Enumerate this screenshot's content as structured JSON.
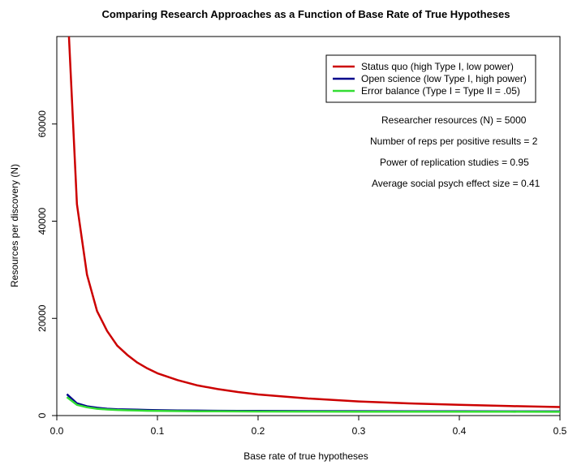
{
  "chart_data": {
    "type": "line",
    "title": "Comparing Research Approaches as a Function of Base Rate of True Hypotheses",
    "xlabel": "Base rate of true hypotheses",
    "ylabel": "Resources per discovery (N)",
    "xlim": [
      0,
      0.5
    ],
    "ylim": [
      0,
      78000
    ],
    "x_ticks": [
      0.0,
      0.1,
      0.2,
      0.3,
      0.4,
      0.5
    ],
    "x_tick_labels": [
      "0.0",
      "0.1",
      "0.2",
      "0.3",
      "0.4",
      "0.5"
    ],
    "y_ticks": [
      0,
      20000,
      40000,
      60000
    ],
    "y_tick_labels": [
      "0",
      "20000",
      "40000",
      "60000"
    ],
    "grid": false,
    "legend_position": "top-right",
    "series": [
      {
        "name": "Status quo (high Type I, low power)",
        "color": "#cc0000",
        "x": [
          0.01,
          0.02,
          0.03,
          0.04,
          0.05,
          0.06,
          0.07,
          0.08,
          0.09,
          0.1,
          0.12,
          0.14,
          0.16,
          0.18,
          0.2,
          0.25,
          0.3,
          0.35,
          0.4,
          0.45,
          0.5
        ],
        "y": [
          87000,
          43500,
          29000,
          21500,
          17400,
          14400,
          12500,
          10900,
          9700,
          8700,
          7300,
          6200,
          5450,
          4850,
          4350,
          3500,
          2900,
          2500,
          2200,
          1950,
          1750
        ]
      },
      {
        "name": "Open science (low Type I, high power)",
        "color": "#00008b",
        "x": [
          0.01,
          0.02,
          0.03,
          0.04,
          0.05,
          0.06,
          0.07,
          0.08,
          0.09,
          0.1,
          0.12,
          0.14,
          0.16,
          0.18,
          0.2,
          0.25,
          0.3,
          0.35,
          0.4,
          0.45,
          0.5
        ],
        "y": [
          4400,
          2500,
          1900,
          1600,
          1400,
          1300,
          1250,
          1200,
          1150,
          1100,
          1060,
          1020,
          990,
          970,
          950,
          920,
          900,
          885,
          870,
          860,
          850
        ]
      },
      {
        "name": "Error balance (Type I = Type II = .05)",
        "color": "#33dd33",
        "x": [
          0.01,
          0.02,
          0.03,
          0.04,
          0.05,
          0.06,
          0.07,
          0.08,
          0.09,
          0.1,
          0.12,
          0.14,
          0.16,
          0.18,
          0.2,
          0.25,
          0.3,
          0.35,
          0.4,
          0.45,
          0.5
        ],
        "y": [
          3800,
          2200,
          1700,
          1400,
          1250,
          1150,
          1080,
          1030,
          990,
          960,
          920,
          890,
          870,
          850,
          840,
          820,
          805,
          795,
          785,
          780,
          775
        ]
      }
    ],
    "annotations": [
      {
        "label": "Researcher resources (N) =",
        "value": "5000"
      },
      {
        "label": "Number of reps per positive results =",
        "value": "2"
      },
      {
        "label": "Power of replication studies =",
        "value": "0.95"
      },
      {
        "label": "Average social psych effect size =",
        "value": "0.41"
      }
    ]
  }
}
